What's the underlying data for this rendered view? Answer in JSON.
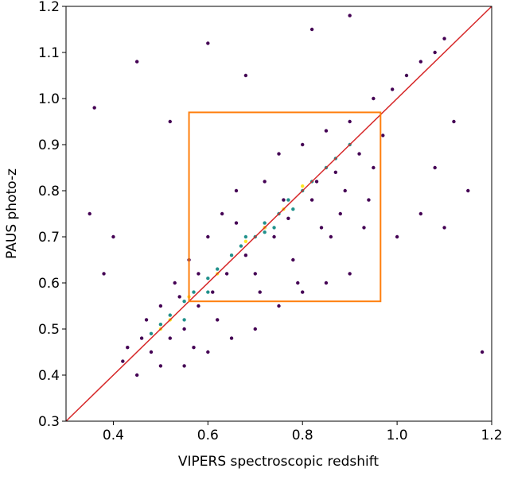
{
  "chart_data": {
    "type": "scatter",
    "xlabel": "VIPERS spectroscopic redshift",
    "ylabel": "PAUS photo-z",
    "xlim": [
      0.3,
      1.2
    ],
    "ylim": [
      0.3,
      1.2
    ],
    "xticks": [
      0.4,
      0.6,
      0.8,
      {
        "value": 1,
        "label": "1.0"
      },
      1.2
    ],
    "yticks": [
      0.3,
      0.4,
      0.5,
      0.6,
      0.7,
      0.8,
      0.9,
      {
        "value": 1,
        "label": "1.0"
      },
      1.1,
      1.2
    ],
    "series": [
      {
        "color": "#440154",
        "x": [
          0.42,
          0.45,
          0.47,
          0.48,
          0.5,
          0.52,
          0.53,
          0.55,
          0.56,
          0.58,
          0.6,
          0.61,
          0.63,
          0.64,
          0.66,
          0.68,
          0.7,
          0.72,
          0.74,
          0.75,
          0.77,
          0.78,
          0.8,
          0.82,
          0.84,
          0.85,
          0.87,
          0.88,
          0.9,
          0.92,
          0.94,
          0.95,
          0.97,
          0.99,
          1.02,
          1.05,
          1.08,
          1.1,
          0.35,
          0.38,
          0.4,
          0.36,
          0.45,
          0.52,
          0.6,
          0.68,
          0.82,
          0.9,
          0.55,
          0.6,
          0.65,
          0.7,
          0.75,
          0.8,
          0.85,
          0.9,
          1.0,
          1.05,
          1.1,
          1.15,
          1.18,
          1.12,
          1.08,
          0.95,
          0.93,
          0.86,
          0.79,
          0.71,
          0.62,
          0.57,
          0.5,
          0.46,
          0.43,
          0.66,
          0.72,
          0.76,
          0.83,
          0.89,
          0.58,
          0.54
        ],
        "y": [
          0.43,
          0.4,
          0.52,
          0.45,
          0.55,
          0.48,
          0.6,
          0.5,
          0.65,
          0.55,
          0.7,
          0.58,
          0.75,
          0.62,
          0.8,
          0.66,
          0.62,
          0.82,
          0.7,
          0.88,
          0.74,
          0.65,
          0.9,
          0.78,
          0.72,
          0.93,
          0.84,
          0.75,
          0.95,
          0.88,
          0.78,
          1.0,
          0.92,
          1.02,
          1.05,
          1.08,
          1.1,
          1.13,
          0.75,
          0.62,
          0.7,
          0.98,
          1.08,
          0.95,
          1.12,
          1.05,
          1.15,
          1.18,
          0.42,
          0.45,
          0.48,
          0.5,
          0.55,
          0.58,
          0.6,
          0.62,
          0.7,
          0.75,
          0.72,
          0.8,
          0.45,
          0.95,
          0.85,
          0.85,
          0.72,
          0.7,
          0.6,
          0.58,
          0.52,
          0.46,
          0.42,
          0.48,
          0.46,
          0.73,
          0.72,
          0.78,
          0.82,
          0.8,
          0.62,
          0.57
        ]
      },
      {
        "color": "#21918c",
        "x": [
          0.48,
          0.5,
          0.52,
          0.55,
          0.57,
          0.6,
          0.62,
          0.65,
          0.67,
          0.7,
          0.72,
          0.75,
          0.77,
          0.8,
          0.82,
          0.85,
          0.87,
          0.9,
          0.72,
          0.78,
          0.74,
          0.68,
          0.55,
          0.6
        ],
        "y": [
          0.49,
          0.51,
          0.53,
          0.56,
          0.58,
          0.61,
          0.63,
          0.66,
          0.68,
          0.7,
          0.73,
          0.75,
          0.78,
          0.8,
          0.82,
          0.85,
          0.87,
          0.9,
          0.71,
          0.76,
          0.72,
          0.7,
          0.52,
          0.58
        ]
      },
      {
        "color": "#fde725",
        "x": [
          0.5,
          0.56,
          0.62,
          0.68,
          0.72,
          0.76,
          0.8,
          0.52
        ],
        "y": [
          0.5,
          0.57,
          0.62,
          0.69,
          0.72,
          0.76,
          0.81,
          0.52
        ]
      }
    ],
    "lines": [
      {
        "color": "#d62728",
        "x": [
          0.3,
          1.2
        ],
        "y": [
          0.3,
          1.2
        ]
      }
    ],
    "boxes": [
      {
        "color": "#ff7f0e",
        "x": [
          0.56,
          0.965
        ],
        "y": [
          0.56,
          0.97
        ]
      }
    ]
  }
}
